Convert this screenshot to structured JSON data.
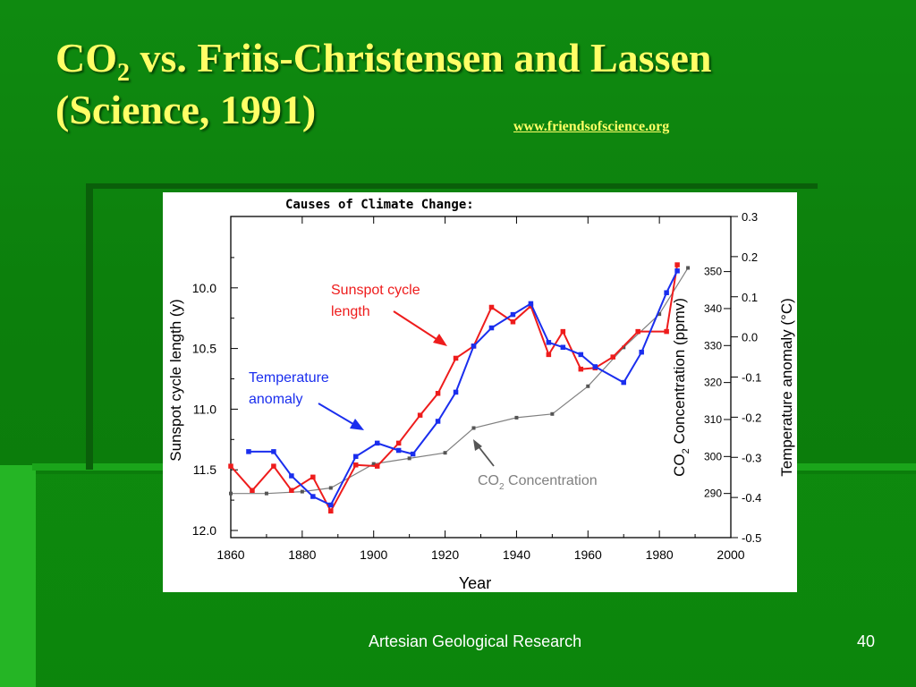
{
  "slide": {
    "title_line1_prefix": "CO",
    "title_line1_sub": "2",
    "title_line1_rest": " vs. Friis-Christensen and Lassen",
    "title_line2": "(Science, 1991)",
    "source_link": "www.friendsofscience.org",
    "footer": "Artesian Geological Research",
    "page_number": "40",
    "colors": {
      "background": "#0c7f0c",
      "title": "#ffff66",
      "footer": "#ffffff"
    }
  },
  "chart_data": {
    "type": "line",
    "title": "Causes of Climate Change:",
    "xlabel": "Year",
    "x_ticks": [
      "1860",
      "1880",
      "1900",
      "1920",
      "1940",
      "1960",
      "1980",
      "2000"
    ],
    "xlim": [
      1860,
      2000
    ],
    "left_axis": {
      "label": "Sunspot cycle length (y)",
      "ticks": [
        "10.0",
        "10.5",
        "11.0",
        "11.5",
        "12.0"
      ],
      "range": [
        9.5,
        12.0
      ],
      "inverted": true
    },
    "co2_axis": {
      "label_prefix": "CO",
      "label_sub": "2",
      "label_rest": " Concentration (ppmv)",
      "ticks": [
        "290",
        "300",
        "310",
        "320",
        "330",
        "340",
        "350"
      ],
      "range": [
        280,
        362
      ]
    },
    "right_axis": {
      "label": "Temperature anomaly (°C)",
      "ticks": [
        "0.3",
        "0.2",
        "0.1",
        "0.0",
        "-0.1",
        "-0.2",
        "-0.3",
        "-0.4",
        "-0.5"
      ],
      "range": [
        -0.5,
        0.3
      ]
    },
    "series": [
      {
        "name": "Sunspot cycle length",
        "color": "#ee1c1c",
        "axis": "left",
        "x": [
          1860,
          1866,
          1872,
          1877,
          1883,
          1888,
          1895,
          1901,
          1907,
          1913,
          1918,
          1923,
          1928,
          1933,
          1939,
          1944,
          1949,
          1953,
          1958,
          1962,
          1967,
          1974,
          1982,
          1985
        ],
        "y": [
          11.47,
          11.67,
          11.47,
          11.67,
          11.56,
          11.84,
          11.46,
          11.47,
          11.28,
          11.05,
          10.87,
          10.58,
          10.48,
          10.16,
          10.28,
          10.15,
          10.55,
          10.36,
          10.67,
          10.66,
          10.57,
          10.36,
          10.36,
          9.81
        ]
      },
      {
        "name": "Temperature anomaly",
        "color": "#1a2eee",
        "axis": "left",
        "x": [
          1865,
          1872,
          1877,
          1883,
          1888,
          1895,
          1901,
          1907,
          1911,
          1918,
          1923,
          1928,
          1933,
          1939,
          1944,
          1949,
          1953,
          1958,
          1962,
          1970,
          1975,
          1982,
          1985
        ],
        "y": [
          11.35,
          11.35,
          11.55,
          11.72,
          11.79,
          11.39,
          11.28,
          11.34,
          11.37,
          11.1,
          10.86,
          10.48,
          10.33,
          10.22,
          10.13,
          10.45,
          10.49,
          10.55,
          10.65,
          10.78,
          10.53,
          10.04,
          9.86
        ]
      },
      {
        "name": "CO2 Concentration",
        "color": "#808080",
        "axis": "co2",
        "x": [
          1860,
          1870,
          1880,
          1888,
          1900,
          1910,
          1920,
          1928,
          1940,
          1950,
          1960,
          1970,
          1980,
          1988
        ],
        "y": [
          290,
          290,
          290.5,
          291.5,
          298,
          299.5,
          301,
          307.7,
          310.5,
          311.5,
          319,
          329.5,
          338.5,
          351
        ]
      }
    ],
    "annotations": [
      {
        "text_line1": "Sunspot cycle",
        "text_line2": "length",
        "color": "#ee1c1c"
      },
      {
        "text_line1": "Temperature",
        "text_line2": "anomaly",
        "color": "#1a2eee"
      },
      {
        "text_prefix": "CO",
        "text_sub": "2",
        "text_rest": " Concentration",
        "color": "#808080"
      }
    ]
  }
}
